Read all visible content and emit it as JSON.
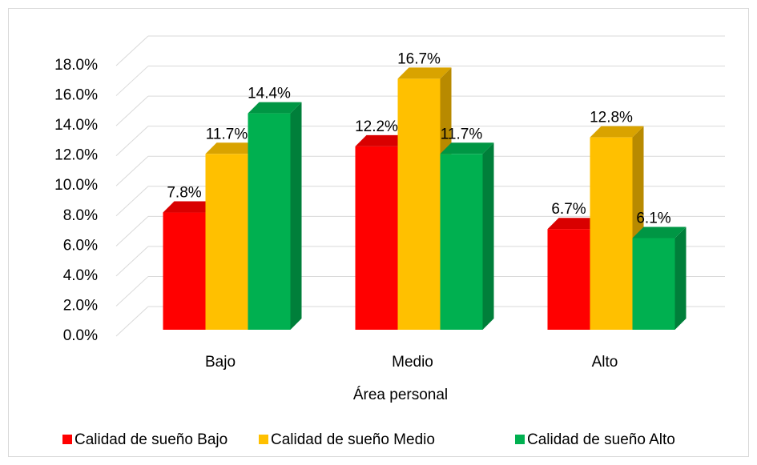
{
  "chart_data": {
    "type": "bar3d",
    "x_label": "Área personal",
    "categories": [
      "Bajo",
      "Medio",
      "Alto"
    ],
    "series": [
      {
        "name": "Calidad de sueño Bajo",
        "color": "#ff0000",
        "values": [
          7.8,
          12.2,
          6.7
        ],
        "value_labels": [
          "7.8%",
          "12.2%",
          "6.7%"
        ]
      },
      {
        "name": "Calidad de sueño Medio",
        "color": "#ffc000",
        "values": [
          11.7,
          16.7,
          12.8
        ],
        "value_labels": [
          "11.7%",
          "16.7%",
          "12.8%"
        ]
      },
      {
        "name": "Calidad de sueño Alto",
        "color": "#00b050",
        "values": [
          14.4,
          11.7,
          6.1
        ],
        "value_labels": [
          "14.4%",
          "11.7%",
          "6.1%"
        ]
      }
    ],
    "ylim": [
      0,
      18
    ],
    "yticks": [
      {
        "value": 0,
        "label": "0.0%"
      },
      {
        "value": 2,
        "label": "2.0%"
      },
      {
        "value": 4,
        "label": "4.0%"
      },
      {
        "value": 6,
        "label": "6.0%"
      },
      {
        "value": 8,
        "label": "8.0%"
      },
      {
        "value": 10,
        "label": "10.0%"
      },
      {
        "value": 12,
        "label": "12.0%"
      },
      {
        "value": 14,
        "label": "14.0%"
      },
      {
        "value": 16,
        "label": "16.0%"
      },
      {
        "value": 18,
        "label": "18.0%"
      }
    ],
    "grid": true,
    "legend": "bottom"
  }
}
